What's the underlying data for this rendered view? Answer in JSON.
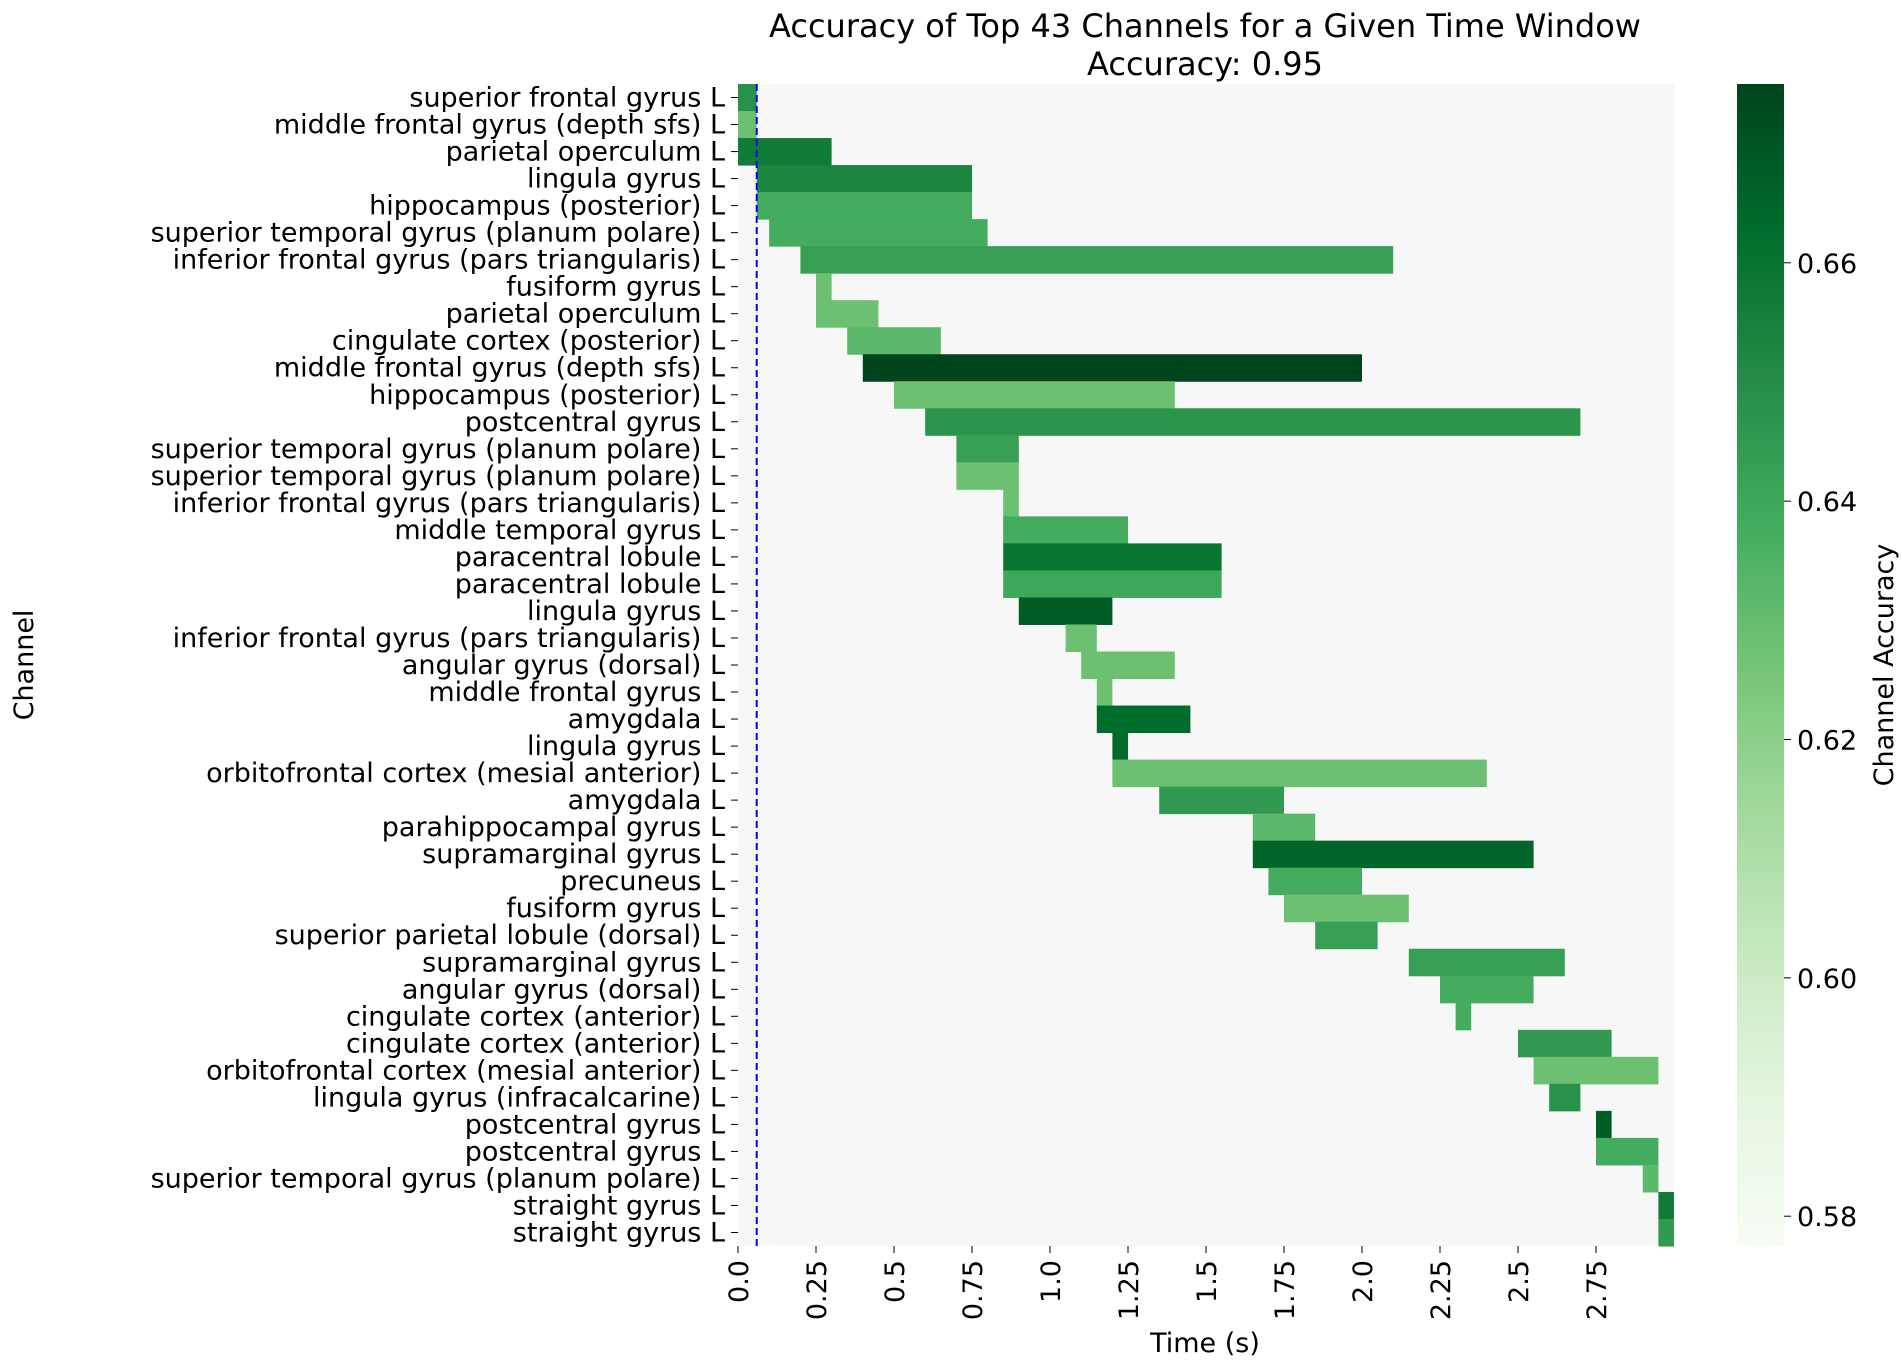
{
  "chart_data": {
    "type": "heatmap",
    "title": "Accuracy of Top 43 Channels for a Given Time Window",
    "subtitle": "Accuracy: 0.95",
    "xlabel": "Time (s)",
    "ylabel": "Channel",
    "xlim": [
      0,
      3.0
    ],
    "x_ticks": [
      0.0,
      0.25,
      0.5,
      0.75,
      1.0,
      1.25,
      1.5,
      1.75,
      2.0,
      2.25,
      2.5,
      2.75
    ],
    "x_tick_labels": [
      "0.0",
      "0.25",
      "0.5",
      "0.75",
      "1.0",
      "1.25",
      "1.5",
      "1.75",
      "2.0",
      "2.25",
      "2.5",
      "2.75"
    ],
    "marker_line_x": 0.06,
    "background_color": "#f7f7f7",
    "colormap": "Greens",
    "colorbar": {
      "label": "Channel Accuracy",
      "range": [
        0.5775,
        0.675
      ],
      "ticks": [
        0.58,
        0.6,
        0.62,
        0.64,
        0.66
      ],
      "tick_labels": [
        "0.58",
        "0.60",
        "0.62",
        "0.64",
        "0.66"
      ]
    },
    "channels": [
      {
        "label": "superior frontal gyrus L",
        "start": 0.0,
        "end": 0.06,
        "accuracy": 0.648
      },
      {
        "label": "middle frontal gyrus (depth sfs) L",
        "start": 0.0,
        "end": 0.06,
        "accuracy": 0.628
      },
      {
        "label": "parietal operculum L",
        "start": 0.0,
        "end": 0.3,
        "accuracy": 0.657
      },
      {
        "label": "lingula gyrus L",
        "start": 0.06,
        "end": 0.75,
        "accuracy": 0.653
      },
      {
        "label": "hippocampus (posterior) L",
        "start": 0.06,
        "end": 0.75,
        "accuracy": 0.638
      },
      {
        "label": "superior temporal gyrus (planum polare) L",
        "start": 0.1,
        "end": 0.8,
        "accuracy": 0.638
      },
      {
        "label": "inferior frontal gyrus (pars triangularis) L",
        "start": 0.2,
        "end": 2.1,
        "accuracy": 0.643
      },
      {
        "label": "fusiform gyrus L",
        "start": 0.25,
        "end": 0.3,
        "accuracy": 0.628
      },
      {
        "label": "parietal operculum L",
        "start": 0.25,
        "end": 0.45,
        "accuracy": 0.628
      },
      {
        "label": "cingulate cortex (posterior) L",
        "start": 0.35,
        "end": 0.65,
        "accuracy": 0.632
      },
      {
        "label": "middle frontal gyrus (depth sfs) L",
        "start": 0.4,
        "end": 2.0,
        "accuracy": 0.675
      },
      {
        "label": "hippocampus (posterior) L",
        "start": 0.5,
        "end": 1.4,
        "accuracy": 0.628
      },
      {
        "label": "postcentral gyrus L",
        "start": 0.6,
        "end": 2.7,
        "accuracy": 0.647
      },
      {
        "label": "superior temporal gyrus (planum polare) L",
        "start": 0.7,
        "end": 0.9,
        "accuracy": 0.643
      },
      {
        "label": "superior temporal gyrus (planum polare) L",
        "start": 0.7,
        "end": 0.9,
        "accuracy": 0.628
      },
      {
        "label": "inferior frontal gyrus (pars triangularis) L",
        "start": 0.85,
        "end": 0.9,
        "accuracy": 0.628
      },
      {
        "label": "middle temporal gyrus L",
        "start": 0.85,
        "end": 1.25,
        "accuracy": 0.638
      },
      {
        "label": "paracentral lobule L",
        "start": 0.85,
        "end": 1.55,
        "accuracy": 0.66
      },
      {
        "label": "paracentral lobule L",
        "start": 0.85,
        "end": 1.55,
        "accuracy": 0.64
      },
      {
        "label": "lingula gyrus L",
        "start": 0.9,
        "end": 1.2,
        "accuracy": 0.668
      },
      {
        "label": "inferior frontal gyrus (pars triangularis) L",
        "start": 1.05,
        "end": 1.15,
        "accuracy": 0.628
      },
      {
        "label": "angular gyrus (dorsal) L",
        "start": 1.1,
        "end": 1.4,
        "accuracy": 0.628
      },
      {
        "label": "middle frontal gyrus L",
        "start": 1.15,
        "end": 1.2,
        "accuracy": 0.628
      },
      {
        "label": "amygdala L",
        "start": 1.15,
        "end": 1.45,
        "accuracy": 0.663
      },
      {
        "label": "lingula gyrus L",
        "start": 1.2,
        "end": 1.25,
        "accuracy": 0.663
      },
      {
        "label": "orbitofrontal cortex (mesial anterior) L",
        "start": 1.2,
        "end": 2.4,
        "accuracy": 0.628
      },
      {
        "label": "amygdala L",
        "start": 1.35,
        "end": 1.75,
        "accuracy": 0.645
      },
      {
        "label": "parahippocampal gyrus L",
        "start": 1.65,
        "end": 1.85,
        "accuracy": 0.632
      },
      {
        "label": "supramarginal gyrus L",
        "start": 1.65,
        "end": 2.55,
        "accuracy": 0.665
      },
      {
        "label": "precuneus L",
        "start": 1.7,
        "end": 2.0,
        "accuracy": 0.638
      },
      {
        "label": "fusiform gyrus L",
        "start": 1.75,
        "end": 2.15,
        "accuracy": 0.628
      },
      {
        "label": "superior parietal lobule (dorsal) L",
        "start": 1.85,
        "end": 2.05,
        "accuracy": 0.643
      },
      {
        "label": "supramarginal gyrus L",
        "start": 2.15,
        "end": 2.65,
        "accuracy": 0.643
      },
      {
        "label": "angular gyrus (dorsal) L",
        "start": 2.25,
        "end": 2.55,
        "accuracy": 0.638
      },
      {
        "label": "cingulate cortex (anterior) L",
        "start": 2.3,
        "end": 2.35,
        "accuracy": 0.638
      },
      {
        "label": "cingulate cortex (anterior) L",
        "start": 2.5,
        "end": 2.8,
        "accuracy": 0.645
      },
      {
        "label": "orbitofrontal cortex (mesial anterior) L",
        "start": 2.55,
        "end": 2.95,
        "accuracy": 0.628
      },
      {
        "label": "lingula gyrus (infracalcarine) L",
        "start": 2.6,
        "end": 2.7,
        "accuracy": 0.648
      },
      {
        "label": "postcentral gyrus L",
        "start": 2.75,
        "end": 2.8,
        "accuracy": 0.668
      },
      {
        "label": "postcentral gyrus L",
        "start": 2.75,
        "end": 2.95,
        "accuracy": 0.638
      },
      {
        "label": "superior temporal gyrus (planum polare) L",
        "start": 2.9,
        "end": 2.95,
        "accuracy": 0.632
      },
      {
        "label": "straight gyrus L",
        "start": 2.95,
        "end": 3.0,
        "accuracy": 0.657
      },
      {
        "label": "straight gyrus L",
        "start": 2.95,
        "end": 3.0,
        "accuracy": 0.645
      }
    ]
  }
}
